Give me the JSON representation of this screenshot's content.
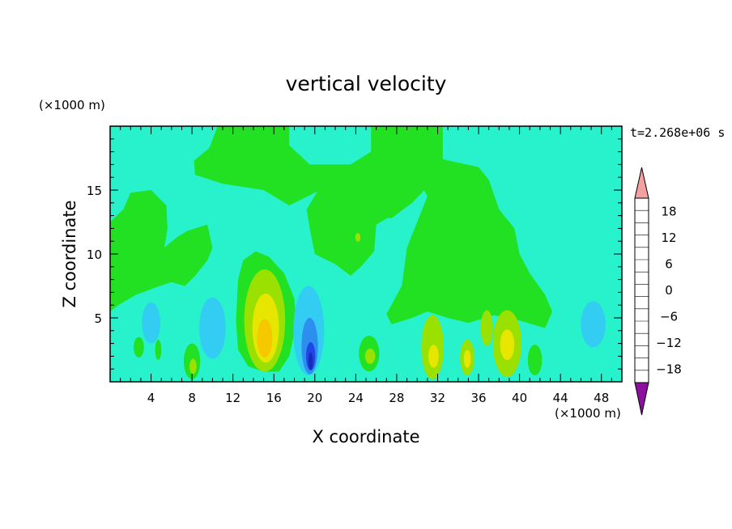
{
  "chart_data": {
    "type": "heatmap",
    "title": "vertical velocity",
    "xlabel": "X coordinate",
    "ylabel": "Z coordinate",
    "x_unit": "(×1000 m)",
    "y_unit": "(×1000 m)",
    "time_label": "t=2.268e+06 s",
    "xlim": [
      0,
      50
    ],
    "ylim": [
      0,
      20
    ],
    "x_ticks": [
      4,
      8,
      12,
      16,
      20,
      24,
      28,
      32,
      36,
      40,
      44,
      48
    ],
    "y_ticks": [
      5,
      10,
      15
    ],
    "colorbar": {
      "levels": [
        -21,
        -18,
        -15,
        -12,
        -9,
        -6,
        -3,
        0,
        3,
        6,
        9,
        12,
        15,
        18,
        21
      ],
      "labels": [
        -18,
        -12,
        -6,
        0,
        6,
        12,
        18
      ],
      "colors": [
        "#55199a",
        "#1a1a80",
        "#1c2ab8",
        "#1f47e6",
        "#2d8ef0",
        "#33ccf2",
        "#27f2cc",
        "#22e022",
        "#9ae000",
        "#e6e600",
        "#f5c800",
        "#f59a00",
        "#f26400",
        "#e62d00",
        "#cc1a10"
      ],
      "under_color": "#8c0fa0",
      "over_color": "#f2a0a0"
    },
    "background_value": -1,
    "features": [
      {
        "type": "region",
        "value": 1,
        "points": [
          [
            10.5,
            20
          ],
          [
            17.5,
            20
          ],
          [
            17.5,
            18.5
          ],
          [
            19.5,
            17
          ],
          [
            23.5,
            17
          ],
          [
            25.5,
            18
          ],
          [
            25.5,
            20
          ],
          [
            32.5,
            20
          ],
          [
            32.5,
            16.5
          ],
          [
            29.5,
            14
          ],
          [
            27.5,
            12.8
          ],
          [
            24,
            13
          ],
          [
            22.5,
            15.5
          ],
          [
            20,
            14.8
          ],
          [
            17.5,
            13.8
          ],
          [
            15,
            15
          ],
          [
            11,
            15.5
          ],
          [
            8.3,
            16.2
          ],
          [
            8.2,
            17.3
          ],
          [
            9.7,
            18.3
          ]
        ]
      },
      {
        "type": "region",
        "value": 1,
        "points": [
          [
            23.5,
            16
          ],
          [
            27,
            15.2
          ],
          [
            28.5,
            13.5
          ],
          [
            26,
            12.3
          ],
          [
            25.8,
            10.2
          ],
          [
            24.5,
            9
          ],
          [
            23.5,
            8.3
          ],
          [
            22,
            9.2
          ],
          [
            20,
            10
          ],
          [
            19.5,
            12
          ],
          [
            19.2,
            13.5
          ],
          [
            20.5,
            15.2
          ]
        ]
      },
      {
        "type": "region",
        "value": 1,
        "points": [
          [
            0,
            12.5
          ],
          [
            1.3,
            13.5
          ],
          [
            2,
            14.8
          ],
          [
            4,
            15
          ],
          [
            5.5,
            13.8
          ],
          [
            5.6,
            12
          ],
          [
            5.3,
            10.5
          ],
          [
            6.5,
            11.3
          ],
          [
            7.5,
            11.8
          ],
          [
            9.5,
            12.3
          ],
          [
            10,
            10.5
          ],
          [
            9.5,
            9.5
          ],
          [
            8.3,
            8.3
          ],
          [
            7.3,
            7.5
          ],
          [
            6,
            7.8
          ],
          [
            4.5,
            7.4
          ],
          [
            2.5,
            6.8
          ],
          [
            0.8,
            6
          ],
          [
            0,
            5.5
          ]
        ]
      },
      {
        "type": "region",
        "value": 1,
        "points": [
          [
            28.6,
            17.1
          ],
          [
            32,
            17.5
          ],
          [
            36,
            16.8
          ],
          [
            37,
            15.8
          ],
          [
            38,
            13.5
          ],
          [
            39.5,
            12
          ],
          [
            40,
            10
          ],
          [
            41,
            8.5
          ],
          [
            42.5,
            6.8
          ],
          [
            43.2,
            5.5
          ],
          [
            42.5,
            4.2
          ],
          [
            40,
            4.8
          ],
          [
            37.5,
            5.2
          ],
          [
            35,
            4.6
          ],
          [
            33,
            5
          ],
          [
            31,
            5.5
          ],
          [
            29.5,
            5
          ],
          [
            27.5,
            4.5
          ],
          [
            27,
            5.3
          ],
          [
            28.5,
            7.5
          ],
          [
            29,
            10.5
          ],
          [
            30,
            12.5
          ],
          [
            31,
            14.5
          ],
          [
            30,
            16
          ]
        ]
      },
      {
        "type": "region",
        "value": 1,
        "points": [
          [
            12.3,
            4.8
          ],
          [
            12.5,
            8
          ],
          [
            13,
            9.5
          ],
          [
            14.2,
            10.2
          ],
          [
            15.5,
            9.8
          ],
          [
            17,
            8.5
          ],
          [
            18,
            6.5
          ],
          [
            18.2,
            4.5
          ],
          [
            17.5,
            2
          ],
          [
            16.5,
            0.8
          ],
          [
            15,
            0.8
          ],
          [
            13.5,
            1.2
          ],
          [
            12.5,
            2.5
          ]
        ]
      },
      {
        "type": "ellipse",
        "value": 4,
        "cx": 15.1,
        "cy": 4.8,
        "rx": 2,
        "ry": 4
      },
      {
        "type": "ellipse",
        "value": 7,
        "cx": 15.2,
        "cy": 4.2,
        "rx": 1.3,
        "ry": 2.7
      },
      {
        "type": "ellipse",
        "value": 10,
        "cx": 15.1,
        "cy": 3.4,
        "rx": 0.75,
        "ry": 1.5
      },
      {
        "type": "ellipse",
        "value": -4,
        "cx": 4,
        "cy": 4.6,
        "rx": 0.9,
        "ry": 1.6
      },
      {
        "type": "ellipse",
        "value": -4,
        "cx": 10,
        "cy": 4.2,
        "rx": 1.3,
        "ry": 2.4
      },
      {
        "type": "ellipse",
        "value": -4,
        "cx": 19.4,
        "cy": 4,
        "rx": 1.5,
        "ry": 3.5
      },
      {
        "type": "ellipse",
        "value": -8,
        "cx": 19.5,
        "cy": 2.8,
        "rx": 0.8,
        "ry": 2.2
      },
      {
        "type": "ellipse",
        "value": -10,
        "cx": 19.6,
        "cy": 2,
        "rx": 0.45,
        "ry": 1.1
      },
      {
        "type": "ellipse",
        "value": -14,
        "cx": 19.6,
        "cy": 1.6,
        "rx": 0.22,
        "ry": 0.7
      },
      {
        "type": "ellipse",
        "value": -4,
        "cx": 47.2,
        "cy": 4.5,
        "rx": 1.2,
        "ry": 1.8
      },
      {
        "type": "ellipse",
        "value": 1,
        "cx": 8,
        "cy": 1.6,
        "rx": 0.8,
        "ry": 1.4
      },
      {
        "type": "ellipse",
        "value": 4,
        "cx": 8.1,
        "cy": 1.2,
        "rx": 0.35,
        "ry": 0.6
      },
      {
        "type": "ellipse",
        "value": 1,
        "cx": 4.7,
        "cy": 2.5,
        "rx": 0.3,
        "ry": 0.8
      },
      {
        "type": "ellipse",
        "value": 1,
        "cx": 2.8,
        "cy": 2.7,
        "rx": 0.5,
        "ry": 0.8
      },
      {
        "type": "ellipse",
        "value": 1,
        "cx": 25.3,
        "cy": 2.2,
        "rx": 1,
        "ry": 1.4
      },
      {
        "type": "ellipse",
        "value": 4,
        "cx": 25.4,
        "cy": 2,
        "rx": 0.5,
        "ry": 0.6
      },
      {
        "type": "ellipse",
        "value": 4,
        "cx": 31.5,
        "cy": 2.7,
        "rx": 1.1,
        "ry": 2.5
      },
      {
        "type": "ellipse",
        "value": 7,
        "cx": 31.6,
        "cy": 2,
        "rx": 0.5,
        "ry": 0.9
      },
      {
        "type": "ellipse",
        "value": 4,
        "cx": 34.9,
        "cy": 1.9,
        "rx": 0.7,
        "ry": 1.4
      },
      {
        "type": "ellipse",
        "value": 7,
        "cx": 34.9,
        "cy": 1.8,
        "rx": 0.35,
        "ry": 0.7
      },
      {
        "type": "ellipse",
        "value": 4,
        "cx": 38.8,
        "cy": 3,
        "rx": 1.4,
        "ry": 2.6
      },
      {
        "type": "ellipse",
        "value": 7,
        "cx": 38.8,
        "cy": 2.9,
        "rx": 0.7,
        "ry": 1.2
      },
      {
        "type": "ellipse",
        "value": 4,
        "cx": 36.8,
        "cy": 4.2,
        "rx": 0.6,
        "ry": 1.4
      },
      {
        "type": "ellipse",
        "value": 1,
        "cx": 41.5,
        "cy": 1.7,
        "rx": 0.7,
        "ry": 1.2
      },
      {
        "type": "ellipse",
        "value": 4,
        "cx": 24.2,
        "cy": 11.3,
        "rx": 0.25,
        "ry": 0.35
      }
    ]
  }
}
